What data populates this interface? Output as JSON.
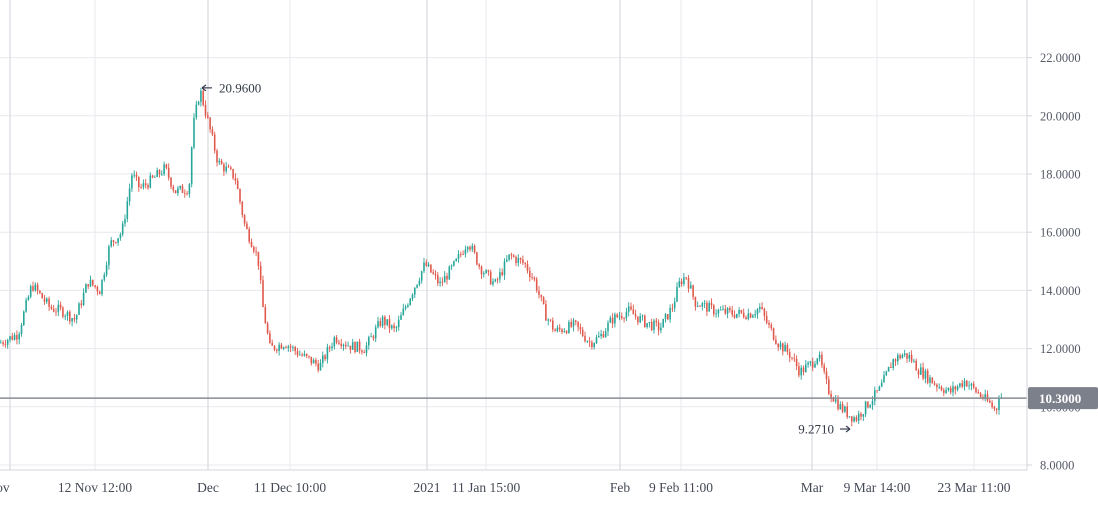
{
  "chart_data": {
    "type": "candlestick",
    "x_tick_labels": [
      "Nov",
      "12 Nov 12:00",
      "Dec",
      "11 Dec 10:00",
      "2021",
      "11 Jan 15:00",
      "Feb",
      "9 Feb 11:00",
      "Mar",
      "9 Mar 14:00",
      "23 Mar 11:00"
    ],
    "y_tick_labels": [
      "22.0000",
      "20.0000",
      "18.0000",
      "16.0000",
      "14.0000",
      "12.0000",
      "10.0000",
      "8.0000"
    ],
    "y_ticks": [
      22,
      20,
      18,
      16,
      14,
      12,
      10,
      8
    ],
    "ylim": [
      7.8,
      23.7
    ],
    "current_price": 10.3,
    "current_price_label": "10.3000",
    "high": {
      "value": 20.96,
      "label": "20.9600"
    },
    "low": {
      "value": 9.271,
      "label": "9.2710"
    },
    "grid": true,
    "colors": {
      "up": "#26a69a",
      "down": "#e0584b",
      "grid": "#e9e9ee",
      "axis": "#d4d6dc",
      "current_line": "#888c94",
      "current_badge": "#7c808a"
    },
    "keypoints": [
      [
        0,
        12.2
      ],
      [
        18,
        12.5
      ],
      [
        32,
        14.2
      ],
      [
        50,
        13.4
      ],
      [
        62,
        13.3
      ],
      [
        75,
        13.0
      ],
      [
        88,
        14.3
      ],
      [
        100,
        14.0
      ],
      [
        110,
        15.6
      ],
      [
        122,
        16.0
      ],
      [
        132,
        18.0
      ],
      [
        140,
        17.5
      ],
      [
        152,
        17.8
      ],
      [
        165,
        18.2
      ],
      [
        175,
        17.4
      ],
      [
        189,
        17.5
      ],
      [
        193,
        19.6
      ],
      [
        200,
        20.9
      ],
      [
        208,
        19.8
      ],
      [
        218,
        18.4
      ],
      [
        235,
        17.9
      ],
      [
        245,
        16.2
      ],
      [
        255,
        15.4
      ],
      [
        259,
        14.9
      ],
      [
        262,
        13.6
      ],
      [
        270,
        12.0
      ],
      [
        285,
        12.2
      ],
      [
        300,
        11.8
      ],
      [
        320,
        11.4
      ],
      [
        335,
        12.4
      ],
      [
        350,
        12.1
      ],
      [
        365,
        12.0
      ],
      [
        382,
        13.0
      ],
      [
        395,
        12.6
      ],
      [
        410,
        13.8
      ],
      [
        425,
        14.9
      ],
      [
        440,
        14.2
      ],
      [
        455,
        14.9
      ],
      [
        468,
        15.7
      ],
      [
        480,
        14.8
      ],
      [
        495,
        14.2
      ],
      [
        510,
        15.2
      ],
      [
        525,
        14.9
      ],
      [
        535,
        14.3
      ],
      [
        545,
        13.2
      ],
      [
        555,
        12.6
      ],
      [
        575,
        12.8
      ],
      [
        590,
        12.2
      ],
      [
        600,
        12.4
      ],
      [
        612,
        13.0
      ],
      [
        628,
        13.3
      ],
      [
        645,
        12.9
      ],
      [
        660,
        12.7
      ],
      [
        672,
        13.4
      ],
      [
        680,
        14.3
      ],
      [
        686,
        14.5
      ],
      [
        695,
        13.6
      ],
      [
        715,
        13.3
      ],
      [
        735,
        13.2
      ],
      [
        750,
        13.2
      ],
      [
        760,
        13.4
      ],
      [
        768,
        12.8
      ],
      [
        778,
        12.2
      ],
      [
        790,
        11.8
      ],
      [
        800,
        11.2
      ],
      [
        812,
        11.5
      ],
      [
        818,
        11.8
      ],
      [
        828,
        10.6
      ],
      [
        840,
        10.0
      ],
      [
        850,
        9.7
      ],
      [
        856,
        9.6
      ],
      [
        868,
        10.1
      ],
      [
        880,
        10.6
      ],
      [
        893,
        11.6
      ],
      [
        903,
        11.8
      ],
      [
        910,
        11.7
      ],
      [
        918,
        11.3
      ],
      [
        935,
        10.8
      ],
      [
        950,
        10.5
      ],
      [
        965,
        10.9
      ],
      [
        980,
        10.4
      ],
      [
        990,
        10.1
      ],
      [
        995,
        9.9
      ],
      [
        1002,
        10.2
      ]
    ]
  }
}
